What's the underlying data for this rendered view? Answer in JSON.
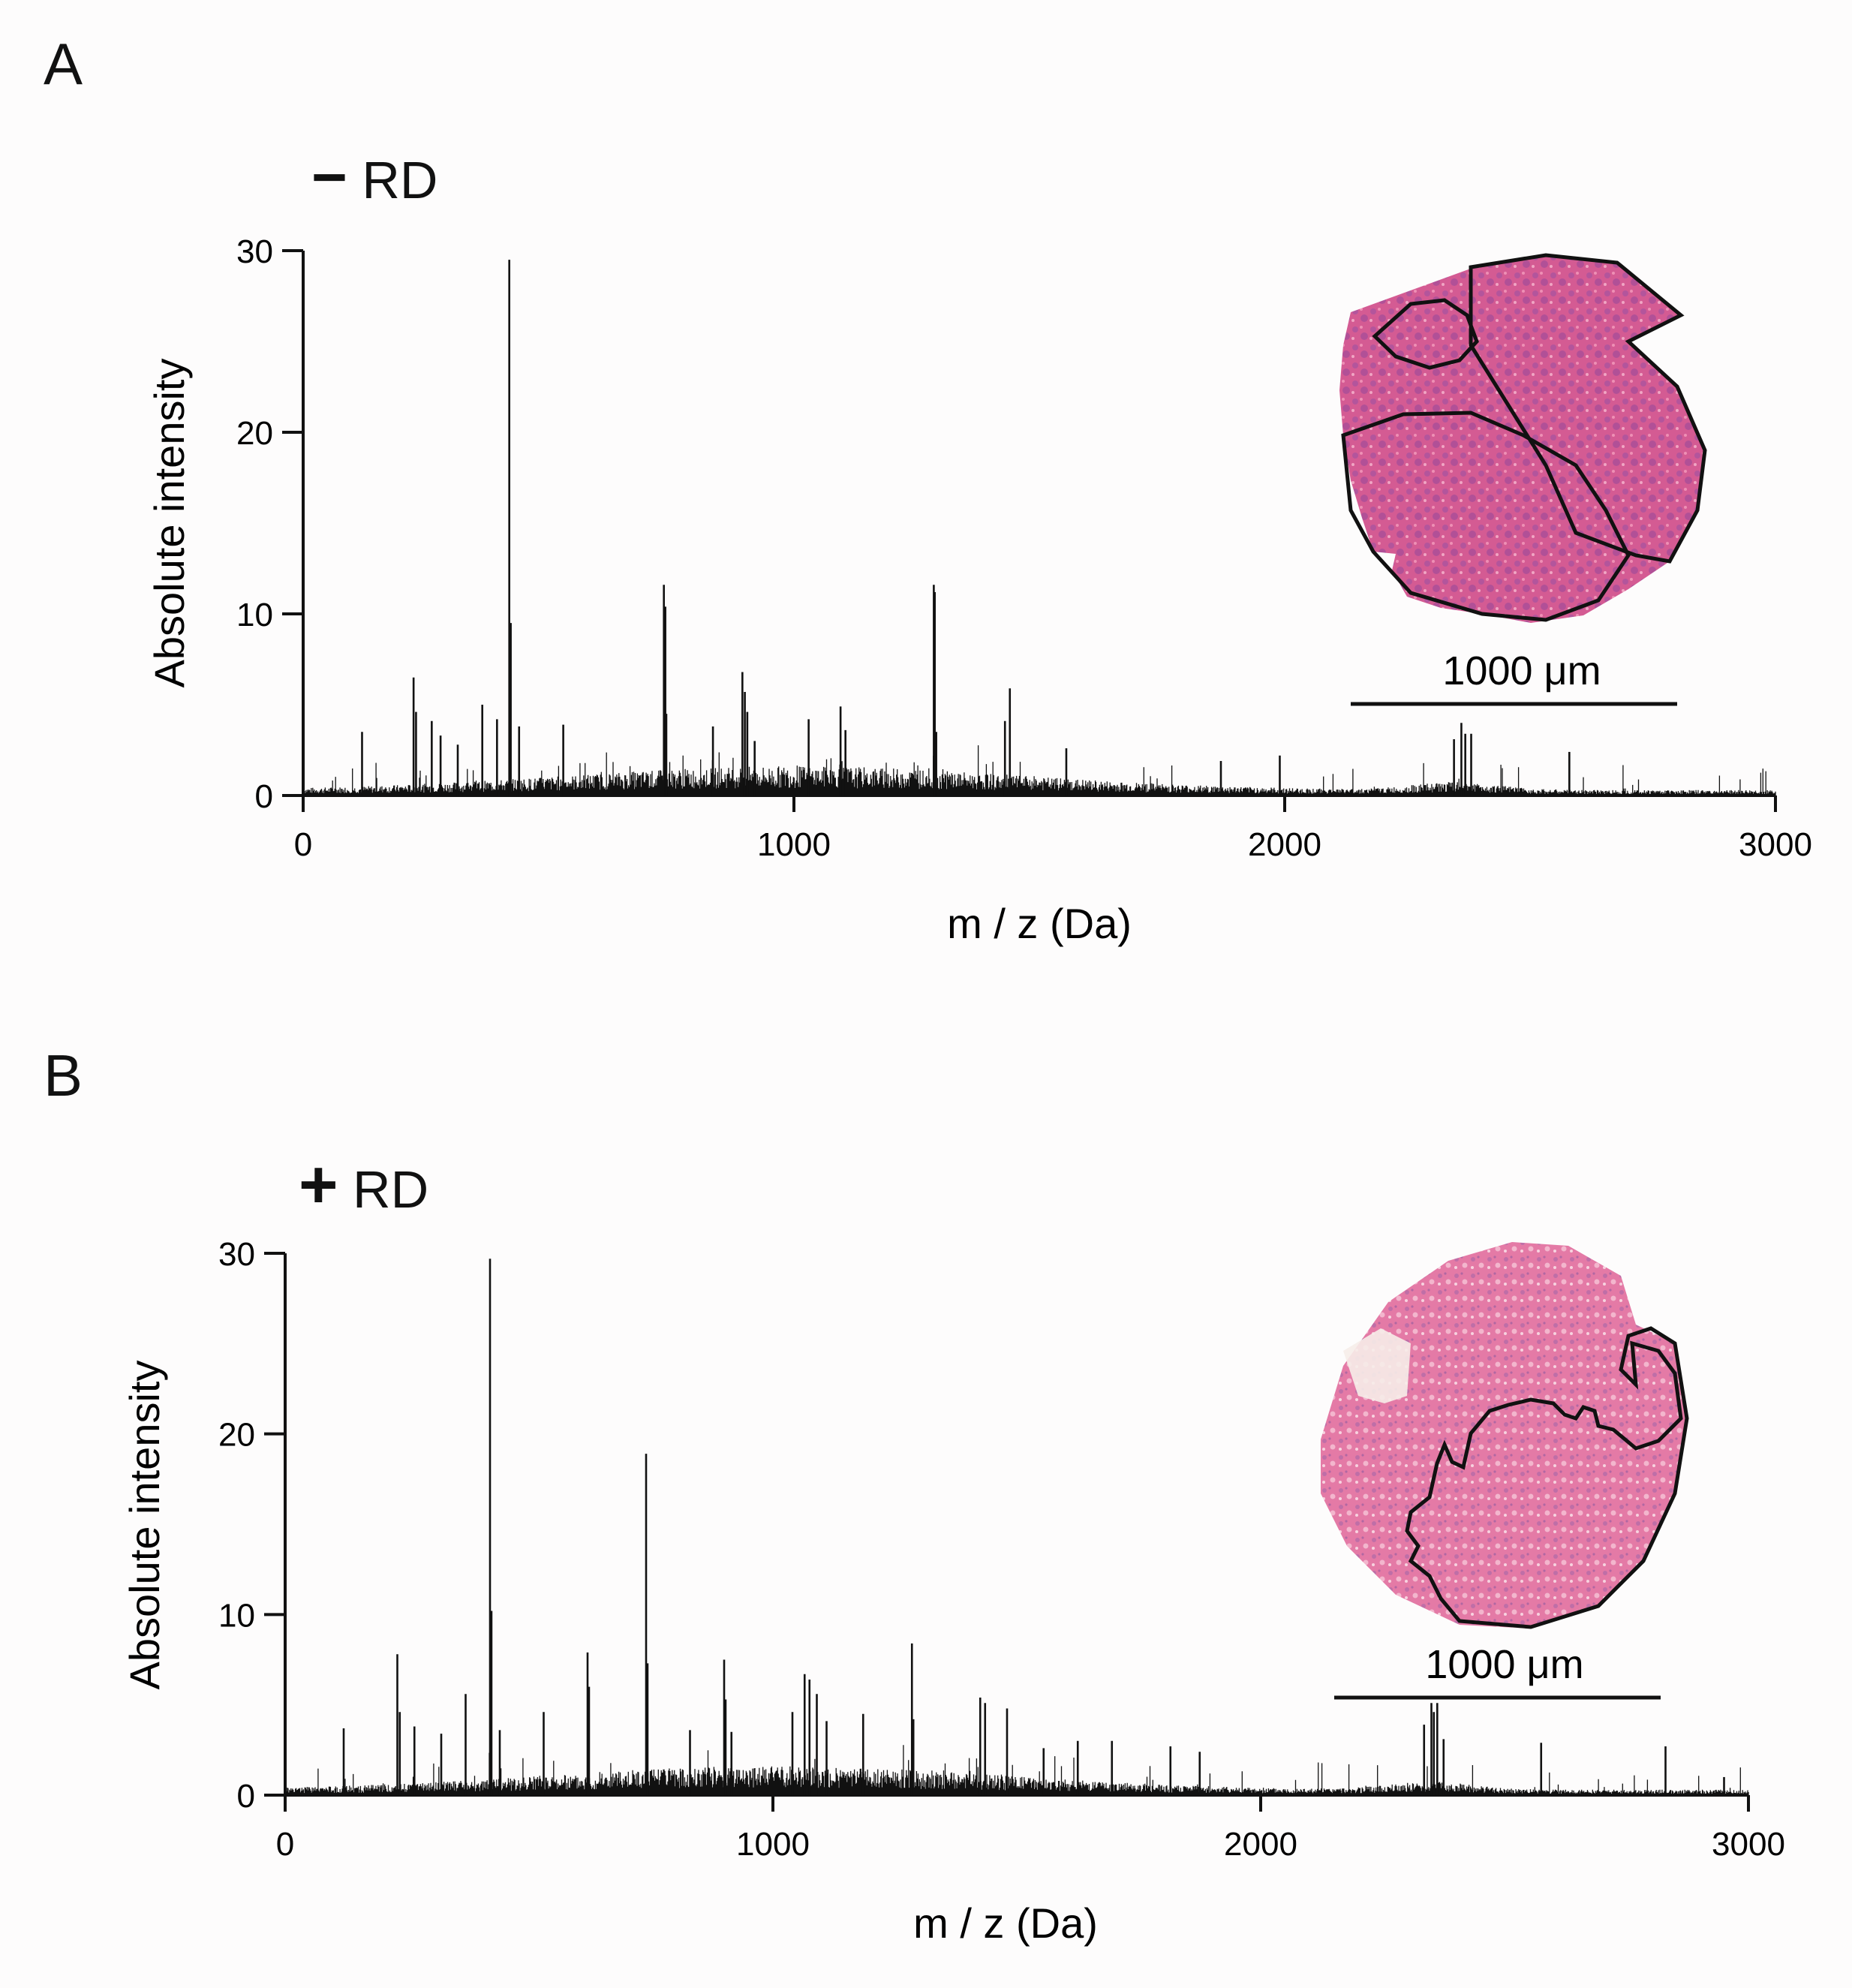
{
  "panels": [
    {
      "letter": "A",
      "condition_symbol": "−",
      "condition_label": "RD"
    },
    {
      "letter": "B",
      "condition_symbol": "+",
      "condition_label": "RD"
    }
  ],
  "chart_data": [
    {
      "type": "line",
      "title": "− RD",
      "xlabel": "m / z (Da)",
      "ylabel": "Absolute intensity",
      "xlim": [
        0,
        3000
      ],
      "ylim": [
        0,
        30
      ],
      "xticks": [
        "0",
        "1000",
        "2000",
        "3000"
      ],
      "yticks": [
        "0",
        "10",
        "20",
        "30"
      ],
      "peaks": [
        {
          "x": 120,
          "y": 3.5
        },
        {
          "x": 225,
          "y": 6.5
        },
        {
          "x": 230,
          "y": 4.6
        },
        {
          "x": 262,
          "y": 4.1
        },
        {
          "x": 280,
          "y": 3.3
        },
        {
          "x": 315,
          "y": 2.8
        },
        {
          "x": 365,
          "y": 5.0
        },
        {
          "x": 395,
          "y": 4.2
        },
        {
          "x": 420,
          "y": 29.5
        },
        {
          "x": 423,
          "y": 9.5
        },
        {
          "x": 440,
          "y": 3.8
        },
        {
          "x": 530,
          "y": 3.9
        },
        {
          "x": 735,
          "y": 11.6
        },
        {
          "x": 738,
          "y": 10.4
        },
        {
          "x": 740,
          "y": 4.5
        },
        {
          "x": 835,
          "y": 3.8
        },
        {
          "x": 895,
          "y": 6.8
        },
        {
          "x": 900,
          "y": 5.7
        },
        {
          "x": 905,
          "y": 4.6
        },
        {
          "x": 920,
          "y": 3.0
        },
        {
          "x": 1030,
          "y": 4.2
        },
        {
          "x": 1095,
          "y": 4.9
        },
        {
          "x": 1105,
          "y": 3.6
        },
        {
          "x": 1285,
          "y": 11.6
        },
        {
          "x": 1287,
          "y": 11.2
        },
        {
          "x": 1290,
          "y": 3.5
        },
        {
          "x": 1430,
          "y": 4.1
        },
        {
          "x": 1440,
          "y": 5.9
        },
        {
          "x": 1555,
          "y": 2.6
        },
        {
          "x": 1870,
          "y": 1.9
        },
        {
          "x": 1990,
          "y": 2.2
        },
        {
          "x": 2345,
          "y": 3.1
        },
        {
          "x": 2360,
          "y": 4.0
        },
        {
          "x": 2368,
          "y": 3.4
        },
        {
          "x": 2380,
          "y": 3.4
        },
        {
          "x": 2580,
          "y": 2.4
        }
      ],
      "inset": {
        "scale_bar_label": "1000 μm"
      }
    },
    {
      "type": "line",
      "title": "+ RD",
      "xlabel": "m / z (Da)",
      "ylabel": "Absolute intensity",
      "xlim": [
        0,
        3000
      ],
      "ylim": [
        0,
        30
      ],
      "xticks": [
        "0",
        "1000",
        "2000",
        "3000"
      ],
      "yticks": [
        "0",
        "10",
        "20",
        "30"
      ],
      "peaks": [
        {
          "x": 120,
          "y": 3.7
        },
        {
          "x": 230,
          "y": 7.8
        },
        {
          "x": 235,
          "y": 4.6
        },
        {
          "x": 265,
          "y": 3.8
        },
        {
          "x": 320,
          "y": 3.4
        },
        {
          "x": 370,
          "y": 5.6
        },
        {
          "x": 420,
          "y": 29.7
        },
        {
          "x": 423,
          "y": 10.2
        },
        {
          "x": 440,
          "y": 3.6
        },
        {
          "x": 530,
          "y": 4.6
        },
        {
          "x": 620,
          "y": 7.9
        },
        {
          "x": 623,
          "y": 6.0
        },
        {
          "x": 740,
          "y": 18.9
        },
        {
          "x": 743,
          "y": 7.3
        },
        {
          "x": 830,
          "y": 3.6
        },
        {
          "x": 900,
          "y": 7.5
        },
        {
          "x": 903,
          "y": 5.3
        },
        {
          "x": 915,
          "y": 3.5
        },
        {
          "x": 1040,
          "y": 4.6
        },
        {
          "x": 1065,
          "y": 6.7
        },
        {
          "x": 1075,
          "y": 6.4
        },
        {
          "x": 1090,
          "y": 5.6
        },
        {
          "x": 1110,
          "y": 4.1
        },
        {
          "x": 1185,
          "y": 4.5
        },
        {
          "x": 1285,
          "y": 8.4
        },
        {
          "x": 1288,
          "y": 4.2
        },
        {
          "x": 1425,
          "y": 5.4
        },
        {
          "x": 1435,
          "y": 5.1
        },
        {
          "x": 1480,
          "y": 4.8
        },
        {
          "x": 1555,
          "y": 2.6
        },
        {
          "x": 1625,
          "y": 3.0
        },
        {
          "x": 1695,
          "y": 3.0
        },
        {
          "x": 1815,
          "y": 2.7
        },
        {
          "x": 1875,
          "y": 2.4
        },
        {
          "x": 2335,
          "y": 3.9
        },
        {
          "x": 2350,
          "y": 5.1
        },
        {
          "x": 2355,
          "y": 4.6
        },
        {
          "x": 2362,
          "y": 5.1
        },
        {
          "x": 2375,
          "y": 3.1
        },
        {
          "x": 2575,
          "y": 2.9
        },
        {
          "x": 2830,
          "y": 2.7
        },
        {
          "x": 2950,
          "y": 1.0
        }
      ],
      "inset": {
        "scale_bar_label": "1000 μm"
      }
    }
  ]
}
